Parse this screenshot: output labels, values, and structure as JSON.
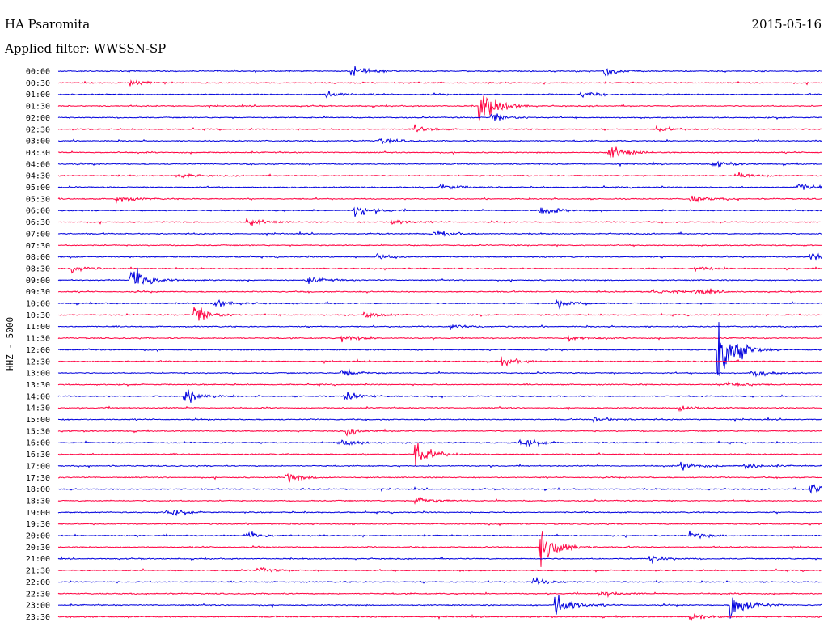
{
  "header": {
    "station": "HA Psaromita",
    "date": "2015-05-16",
    "filter": "Applied filter: WWSSN-SP"
  },
  "colors": {
    "even_trace": "#0000dd",
    "odd_trace": "#ff0040",
    "text": "#000000"
  },
  "chart_data": {
    "type": "line",
    "title": "HA Psaromita",
    "ylabel": "HHZ - 5000",
    "ylabel_dir": "vertical-bottom-to-top",
    "row_labels": [
      "00:00",
      "00:30",
      "01:00",
      "01:30",
      "02:00",
      "02:30",
      "03:00",
      "03:30",
      "04:00",
      "04:30",
      "05:00",
      "05:30",
      "06:00",
      "06:30",
      "07:00",
      "07:30",
      "08:00",
      "08:30",
      "09:00",
      "09:30",
      "10:00",
      "10:30",
      "11:00",
      "11:30",
      "12:00",
      "12:30",
      "13:00",
      "13:30",
      "14:00",
      "14:30",
      "15:00",
      "15:30",
      "16:00",
      "16:30",
      "17:00",
      "17:30",
      "18:00",
      "18:30",
      "19:00",
      "19:30",
      "20:00",
      "20:30",
      "21:00",
      "21:30",
      "22:00",
      "22:30",
      "23:00",
      "23:30"
    ],
    "trace_minutes": 30,
    "colors_alternate": [
      "blue",
      "red"
    ],
    "events": [
      {
        "row": 0,
        "minute": 11.5,
        "amp": 0.7
      },
      {
        "row": 0,
        "minute": 21.4,
        "amp": 0.6
      },
      {
        "row": 1,
        "minute": 2.8,
        "amp": 0.5
      },
      {
        "row": 2,
        "minute": 10.5,
        "amp": 0.5
      },
      {
        "row": 2,
        "minute": 20.5,
        "amp": 0.4
      },
      {
        "row": 3,
        "minute": 16.5,
        "amp": 3.0
      },
      {
        "row": 4,
        "minute": 17.0,
        "amp": 0.6
      },
      {
        "row": 5,
        "minute": 14.0,
        "amp": 0.4
      },
      {
        "row": 5,
        "minute": 23.5,
        "amp": 0.4
      },
      {
        "row": 6,
        "minute": 12.6,
        "amp": 0.4
      },
      {
        "row": 7,
        "minute": 21.6,
        "amp": 1.0
      },
      {
        "row": 8,
        "minute": 25.7,
        "amp": 0.4
      },
      {
        "row": 9,
        "minute": 4.6,
        "amp": 0.4
      },
      {
        "row": 9,
        "minute": 26.7,
        "amp": 0.5
      },
      {
        "row": 10,
        "minute": 15.0,
        "amp": 0.5
      },
      {
        "row": 10,
        "minute": 29.0,
        "amp": 0.6
      },
      {
        "row": 11,
        "minute": 2.2,
        "amp": 0.5
      },
      {
        "row": 11,
        "minute": 24.8,
        "amp": 0.5
      },
      {
        "row": 12,
        "minute": 11.6,
        "amp": 1.0
      },
      {
        "row": 12,
        "minute": 18.9,
        "amp": 0.6
      },
      {
        "row": 13,
        "minute": 7.4,
        "amp": 0.5
      },
      {
        "row": 13,
        "minute": 13.0,
        "amp": 0.5
      },
      {
        "row": 14,
        "minute": 14.7,
        "amp": 0.5
      },
      {
        "row": 16,
        "minute": 12.5,
        "amp": 0.5
      },
      {
        "row": 16,
        "minute": 29.5,
        "amp": 0.7
      },
      {
        "row": 17,
        "minute": 0.5,
        "amp": 0.5
      },
      {
        "row": 17,
        "minute": 25.0,
        "amp": 0.4
      },
      {
        "row": 18,
        "minute": 2.8,
        "amp": 2.5
      },
      {
        "row": 18,
        "minute": 9.7,
        "amp": 0.5
      },
      {
        "row": 19,
        "minute": 23.2,
        "amp": 0.6
      },
      {
        "row": 19,
        "minute": 25.0,
        "amp": 0.5
      },
      {
        "row": 20,
        "minute": 6.1,
        "amp": 0.6
      },
      {
        "row": 20,
        "minute": 19.5,
        "amp": 0.7
      },
      {
        "row": 21,
        "minute": 5.3,
        "amp": 1.3
      },
      {
        "row": 21,
        "minute": 12.0,
        "amp": 0.5
      },
      {
        "row": 22,
        "minute": 15.4,
        "amp": 0.4
      },
      {
        "row": 23,
        "minute": 11.1,
        "amp": 0.6
      },
      {
        "row": 23,
        "minute": 20.0,
        "amp": 0.5
      },
      {
        "row": 24,
        "minute": 25.9,
        "amp": 5.5
      },
      {
        "row": 25,
        "minute": 17.4,
        "amp": 0.6
      },
      {
        "row": 26,
        "minute": 11.1,
        "amp": 0.6
      },
      {
        "row": 26,
        "minute": 27.2,
        "amp": 0.6
      },
      {
        "row": 27,
        "minute": 26.2,
        "amp": 0.6
      },
      {
        "row": 28,
        "minute": 4.9,
        "amp": 1.0
      },
      {
        "row": 28,
        "minute": 11.2,
        "amp": 0.7
      },
      {
        "row": 29,
        "minute": 24.4,
        "amp": 0.5
      },
      {
        "row": 30,
        "minute": 21.0,
        "amp": 0.4
      },
      {
        "row": 31,
        "minute": 11.3,
        "amp": 0.5
      },
      {
        "row": 32,
        "minute": 11.0,
        "amp": 0.7
      },
      {
        "row": 32,
        "minute": 18.1,
        "amp": 0.7
      },
      {
        "row": 33,
        "minute": 14.0,
        "amp": 1.8
      },
      {
        "row": 34,
        "minute": 24.4,
        "amp": 0.6
      },
      {
        "row": 34,
        "minute": 26.9,
        "amp": 0.5
      },
      {
        "row": 35,
        "minute": 8.9,
        "amp": 0.7
      },
      {
        "row": 36,
        "minute": 29.5,
        "amp": 0.9
      },
      {
        "row": 37,
        "minute": 14.0,
        "amp": 0.6
      },
      {
        "row": 38,
        "minute": 4.2,
        "amp": 0.5
      },
      {
        "row": 40,
        "minute": 7.4,
        "amp": 0.6
      },
      {
        "row": 40,
        "minute": 24.8,
        "amp": 0.5
      },
      {
        "row": 41,
        "minute": 18.9,
        "amp": 3.3
      },
      {
        "row": 42,
        "minute": 23.2,
        "amp": 0.5
      },
      {
        "row": 43,
        "minute": 7.8,
        "amp": 0.4
      },
      {
        "row": 44,
        "minute": 18.6,
        "amp": 0.5
      },
      {
        "row": 45,
        "minute": 21.2,
        "amp": 0.5
      },
      {
        "row": 46,
        "minute": 19.5,
        "amp": 1.7
      },
      {
        "row": 46,
        "minute": 26.4,
        "amp": 2.2
      },
      {
        "row": 47,
        "minute": 24.8,
        "amp": 0.5
      }
    ]
  }
}
